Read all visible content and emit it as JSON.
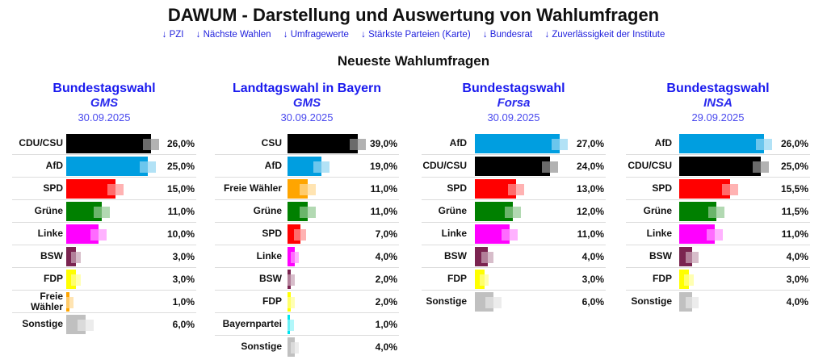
{
  "header": {
    "title": "DAWUM - Darstellung und Auswertung von Wahlumfragen",
    "nav_links": [
      {
        "label": "↓ PZI"
      },
      {
        "label": "↓ Nächste Wahlen"
      },
      {
        "label": "↓ Umfragewerte"
      },
      {
        "label": "↓ Stärkste Parteien (Karte)"
      },
      {
        "label": "↓ Bundesrat"
      },
      {
        "label": "↓ Zuverlässigkeit der Institute"
      }
    ],
    "section_title": "Neueste Wahlumfragen"
  },
  "party_colors": {
    "CDU/CSU": "#000000",
    "CSU": "#000000",
    "AfD": "#009ee0",
    "SPD": "#ff0000",
    "Grüne": "#008000",
    "Linke": "#ff00ff",
    "BSW": "#7b2450",
    "FDP": "#ffff00",
    "Freie Wähler": "#ffa500",
    "Bayernpartei": "#00e5f0",
    "Sonstige": "#c0c0c0"
  },
  "chart_data": [
    {
      "type": "bar",
      "title": "Bundestagswahl",
      "institute": "GMS",
      "date": "30.09.2025",
      "categories": [
        "CDU/CSU",
        "AfD",
        "SPD",
        "Grüne",
        "Linke",
        "BSW",
        "FDP",
        "Freie Wähler",
        "Sonstige"
      ],
      "labels": [
        "CDU/CSU",
        "AfD",
        "SPD",
        "Grüne",
        "Linke",
        "BSW",
        "FDP",
        "Freie Wähler",
        "Sonstige"
      ],
      "values": [
        26.0,
        25.0,
        15.0,
        11.0,
        10.0,
        3.0,
        3.0,
        1.0,
        6.0
      ],
      "value_labels": [
        "26,0%",
        "25,0%",
        "15,0%",
        "11,0%",
        "10,0%",
        "3,0%",
        "3,0%",
        "1,0%",
        "6,0%"
      ]
    },
    {
      "type": "bar",
      "title": "Landtagswahl in Bayern",
      "institute": "GMS",
      "date": "30.09.2025",
      "categories": [
        "CSU",
        "AfD",
        "Freie Wähler",
        "Grüne",
        "SPD",
        "Linke",
        "BSW",
        "FDP",
        "Bayernpartei",
        "Sonstige"
      ],
      "labels": [
        "CSU",
        "AfD",
        "Freie Wähler",
        "Grüne",
        "SPD",
        "Linke",
        "BSW",
        "FDP",
        "Bayernpartei",
        "Sonstige"
      ],
      "values": [
        39.0,
        19.0,
        11.0,
        11.0,
        7.0,
        4.0,
        2.0,
        2.0,
        1.0,
        4.0
      ],
      "value_labels": [
        "39,0%",
        "19,0%",
        "11,0%",
        "11,0%",
        "7,0%",
        "4,0%",
        "2,0%",
        "2,0%",
        "1,0%",
        "4,0%"
      ]
    },
    {
      "type": "bar",
      "title": "Bundestagswahl",
      "institute": "Forsa",
      "date": "30.09.2025",
      "categories": [
        "AfD",
        "CDU/CSU",
        "SPD",
        "Grüne",
        "Linke",
        "BSW",
        "FDP",
        "Sonstige"
      ],
      "labels": [
        "AfD",
        "CDU/CSU",
        "SPD",
        "Grüne",
        "Linke",
        "BSW",
        "FDP",
        "Sonstige"
      ],
      "values": [
        27.0,
        24.0,
        13.0,
        12.0,
        11.0,
        4.0,
        3.0,
        6.0
      ],
      "value_labels": [
        "27,0%",
        "24,0%",
        "13,0%",
        "12,0%",
        "11,0%",
        "4,0%",
        "3,0%",
        "6,0%"
      ]
    },
    {
      "type": "bar",
      "title": "Bundestagswahl",
      "institute": "INSA",
      "date": "29.09.2025",
      "categories": [
        "AfD",
        "CDU/CSU",
        "SPD",
        "Grüne",
        "Linke",
        "BSW",
        "FDP",
        "Sonstige"
      ],
      "labels": [
        "AfD",
        "CDU/CSU",
        "SPD",
        "Grüne",
        "Linke",
        "BSW",
        "FDP",
        "Sonstige"
      ],
      "values": [
        26.0,
        25.0,
        15.5,
        11.5,
        11.0,
        4.0,
        3.0,
        4.0
      ],
      "value_labels": [
        "26,0%",
        "25,0%",
        "15,5%",
        "11,5%",
        "11,0%",
        "4,0%",
        "3,0%",
        "4,0%"
      ]
    }
  ]
}
